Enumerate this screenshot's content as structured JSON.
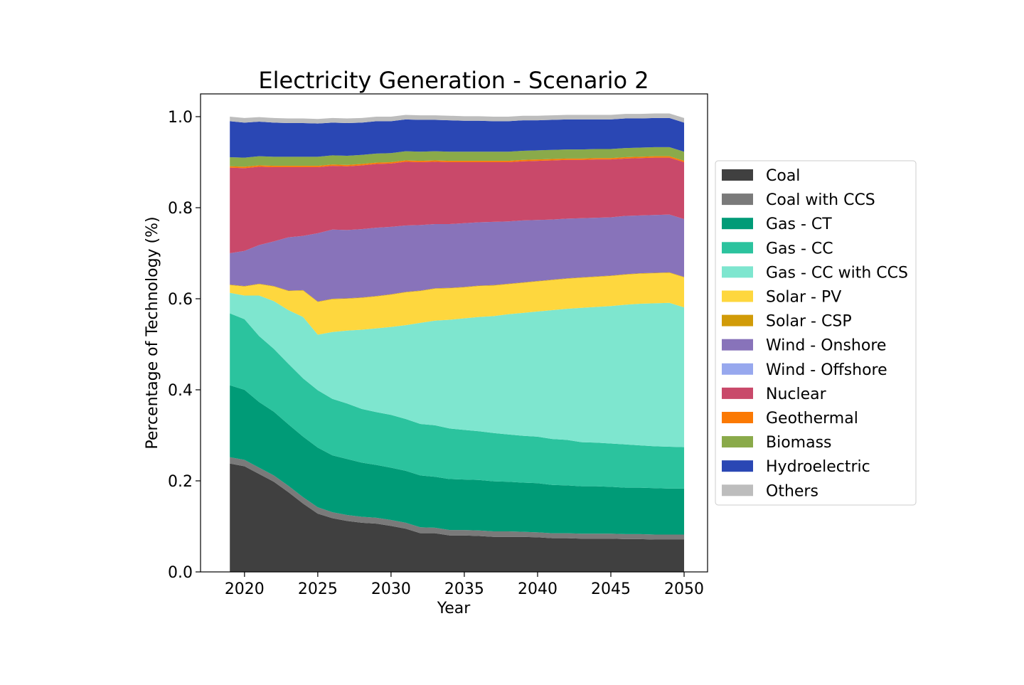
{
  "chart_data": {
    "type": "area",
    "stacked": true,
    "title": "Electricity Generation - Scenario 2",
    "xlabel": "Year",
    "ylabel": "Percentage of Technology (%)",
    "xlim": [
      2017,
      2051.6
    ],
    "ylim": [
      0,
      1.05
    ],
    "xticks": [
      "2020",
      "2025",
      "2030",
      "2035",
      "2040",
      "2045",
      "2050"
    ],
    "yticks": [
      "0.0",
      "0.2",
      "0.4",
      "0.6",
      "0.8",
      "1.0"
    ],
    "grid": false,
    "legend_position": "right",
    "x": [
      2019,
      2020,
      2021,
      2022,
      2023,
      2024,
      2025,
      2026,
      2027,
      2028,
      2029,
      2030,
      2031,
      2032,
      2033,
      2034,
      2035,
      2036,
      2037,
      2038,
      2039,
      2040,
      2041,
      2042,
      2043,
      2044,
      2045,
      2046,
      2047,
      2048,
      2049,
      2050
    ],
    "series": [
      {
        "name": "Coal",
        "color": "#404040",
        "values": [
          0.238,
          0.232,
          0.215,
          0.198,
          0.175,
          0.15,
          0.128,
          0.118,
          0.112,
          0.108,
          0.106,
          0.101,
          0.095,
          0.085,
          0.085,
          0.08,
          0.08,
          0.079,
          0.077,
          0.077,
          0.077,
          0.076,
          0.074,
          0.074,
          0.073,
          0.073,
          0.073,
          0.072,
          0.072,
          0.071,
          0.071,
          0.071
        ]
      },
      {
        "name": "Coal with CCS",
        "color": "#7a7a7a",
        "values": [
          0.014,
          0.014,
          0.014,
          0.014,
          0.014,
          0.014,
          0.014,
          0.013,
          0.013,
          0.013,
          0.013,
          0.013,
          0.013,
          0.013,
          0.012,
          0.012,
          0.012,
          0.012,
          0.012,
          0.012,
          0.011,
          0.011,
          0.011,
          0.011,
          0.011,
          0.011,
          0.011,
          0.011,
          0.011,
          0.011,
          0.011,
          0.011
        ]
      },
      {
        "name": "Gas - CT",
        "color": "#009b77",
        "values": [
          0.158,
          0.154,
          0.144,
          0.14,
          0.135,
          0.133,
          0.131,
          0.125,
          0.123,
          0.119,
          0.116,
          0.115,
          0.114,
          0.114,
          0.112,
          0.112,
          0.111,
          0.111,
          0.11,
          0.109,
          0.108,
          0.108,
          0.106,
          0.105,
          0.104,
          0.104,
          0.103,
          0.102,
          0.102,
          0.102,
          0.101,
          0.101
        ]
      },
      {
        "name": "Gas - CC",
        "color": "#2bc39e",
        "values": [
          0.158,
          0.155,
          0.145,
          0.138,
          0.133,
          0.128,
          0.126,
          0.124,
          0.122,
          0.118,
          0.116,
          0.116,
          0.114,
          0.113,
          0.113,
          0.111,
          0.109,
          0.107,
          0.106,
          0.104,
          0.103,
          0.102,
          0.101,
          0.1,
          0.097,
          0.096,
          0.095,
          0.095,
          0.093,
          0.092,
          0.092,
          0.091
        ]
      },
      {
        "name": "Gas - CC with CCS",
        "color": "#7ee6cf",
        "values": [
          0.045,
          0.052,
          0.089,
          0.105,
          0.118,
          0.135,
          0.122,
          0.147,
          0.16,
          0.174,
          0.184,
          0.193,
          0.206,
          0.222,
          0.23,
          0.239,
          0.245,
          0.251,
          0.257,
          0.264,
          0.27,
          0.275,
          0.283,
          0.288,
          0.295,
          0.298,
          0.302,
          0.307,
          0.311,
          0.314,
          0.316,
          0.307
        ]
      },
      {
        "name": "Solar - PV",
        "color": "#fed73e",
        "values": [
          0.017,
          0.02,
          0.025,
          0.032,
          0.042,
          0.058,
          0.072,
          0.072,
          0.07,
          0.07,
          0.07,
          0.071,
          0.072,
          0.07,
          0.07,
          0.069,
          0.068,
          0.068,
          0.067,
          0.066,
          0.066,
          0.066,
          0.066,
          0.066,
          0.066,
          0.066,
          0.066,
          0.066,
          0.066,
          0.066,
          0.066,
          0.066
        ]
      },
      {
        "name": "Solar - CSP",
        "color": "#d19b08",
        "values": [
          0.001,
          0.001,
          0.001,
          0.001,
          0.001,
          0.001,
          0.001,
          0.001,
          0.001,
          0.001,
          0.001,
          0.001,
          0.001,
          0.001,
          0.001,
          0.001,
          0.001,
          0.001,
          0.001,
          0.001,
          0.001,
          0.001,
          0.001,
          0.001,
          0.001,
          0.001,
          0.001,
          0.001,
          0.001,
          0.001,
          0.001,
          0.001
        ]
      },
      {
        "name": "Wind - Onshore",
        "color": "#8873ba",
        "values": [
          0.069,
          0.077,
          0.085,
          0.098,
          0.117,
          0.119,
          0.15,
          0.152,
          0.15,
          0.15,
          0.15,
          0.148,
          0.146,
          0.144,
          0.141,
          0.14,
          0.14,
          0.139,
          0.139,
          0.137,
          0.136,
          0.134,
          0.132,
          0.131,
          0.13,
          0.129,
          0.128,
          0.128,
          0.127,
          0.127,
          0.127,
          0.127
        ]
      },
      {
        "name": "Wind - Offshore",
        "color": "#97a8ee",
        "values": [
          0.0,
          0.0,
          0.0,
          0.0,
          0.0,
          0.0,
          0.0,
          0.0,
          0.0,
          0.0,
          0.0,
          0.0,
          0.0,
          0.0,
          0.0,
          0.0,
          0.0,
          0.0,
          0.0,
          0.0,
          0.0,
          0.0,
          0.0,
          0.0,
          0.0,
          0.0,
          0.0,
          0.0,
          0.0,
          0.0,
          0.0,
          0.0
        ]
      },
      {
        "name": "Nuclear",
        "color": "#c9496a",
        "values": [
          0.188,
          0.182,
          0.172,
          0.163,
          0.154,
          0.151,
          0.145,
          0.14,
          0.14,
          0.14,
          0.14,
          0.139,
          0.14,
          0.138,
          0.137,
          0.136,
          0.134,
          0.132,
          0.131,
          0.13,
          0.13,
          0.13,
          0.13,
          0.129,
          0.128,
          0.128,
          0.127,
          0.126,
          0.126,
          0.126,
          0.125,
          0.125
        ]
      },
      {
        "name": "Geothermal",
        "color": "#fb7903",
        "values": [
          0.003,
          0.003,
          0.003,
          0.003,
          0.003,
          0.003,
          0.003,
          0.003,
          0.003,
          0.003,
          0.003,
          0.003,
          0.003,
          0.003,
          0.003,
          0.003,
          0.003,
          0.003,
          0.003,
          0.003,
          0.003,
          0.003,
          0.003,
          0.003,
          0.003,
          0.003,
          0.003,
          0.003,
          0.003,
          0.003,
          0.003,
          0.003
        ]
      },
      {
        "name": "Biomass",
        "color": "#8aaa4a",
        "values": [
          0.02,
          0.02,
          0.02,
          0.02,
          0.02,
          0.02,
          0.02,
          0.02,
          0.02,
          0.02,
          0.02,
          0.02,
          0.02,
          0.02,
          0.02,
          0.02,
          0.02,
          0.02,
          0.02,
          0.02,
          0.02,
          0.02,
          0.02,
          0.02,
          0.02,
          0.02,
          0.02,
          0.02,
          0.02,
          0.02,
          0.02,
          0.02
        ]
      },
      {
        "name": "Hydroelectric",
        "color": "#2a47b4",
        "values": [
          0.079,
          0.077,
          0.076,
          0.075,
          0.074,
          0.074,
          0.073,
          0.072,
          0.072,
          0.071,
          0.071,
          0.07,
          0.07,
          0.07,
          0.069,
          0.069,
          0.068,
          0.068,
          0.067,
          0.067,
          0.067,
          0.066,
          0.066,
          0.066,
          0.066,
          0.065,
          0.065,
          0.065,
          0.064,
          0.064,
          0.064,
          0.064
        ]
      },
      {
        "name": "Others",
        "color": "#bdbdbd",
        "values": [
          0.01,
          0.01,
          0.01,
          0.01,
          0.01,
          0.01,
          0.01,
          0.01,
          0.01,
          0.01,
          0.01,
          0.01,
          0.01,
          0.01,
          0.01,
          0.01,
          0.01,
          0.01,
          0.01,
          0.01,
          0.01,
          0.01,
          0.01,
          0.01,
          0.01,
          0.01,
          0.01,
          0.01,
          0.01,
          0.01,
          0.01,
          0.01
        ]
      }
    ]
  }
}
